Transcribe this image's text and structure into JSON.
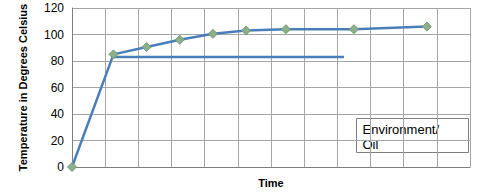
{
  "chart_data": {
    "type": "line",
    "x_label": "Time",
    "y_label": "Temperature in Degrees Celsius",
    "series": [
      {
        "x": [
          0,
          1.25,
          2.25,
          3.25,
          4.25,
          5.25,
          6.45,
          8.5,
          10.7
        ],
        "values": [
          0,
          85,
          90.5,
          96,
          100.5,
          103,
          104,
          104,
          106
        ],
        "color": "#4a7ebb",
        "marker": "diamond"
      },
      {
        "x": [
          1.25,
          8.2
        ],
        "values": [
          83,
          83
        ],
        "color": "#4a7ebb",
        "marker": "none"
      }
    ],
    "annotation": "Environment/ Oil",
    "xlim": [
      0,
      12
    ],
    "xticks": [
      0,
      1,
      2,
      3,
      4,
      5,
      6,
      7,
      8,
      9,
      10,
      11,
      12
    ],
    "ylim": [
      0,
      120
    ],
    "yticks": [
      0,
      20,
      40,
      60,
      80,
      100,
      120
    ],
    "grid": true,
    "tick_labels": "y"
  }
}
